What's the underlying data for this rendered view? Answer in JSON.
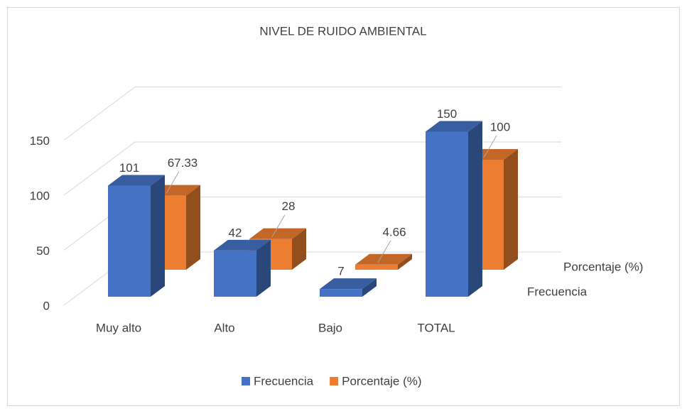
{
  "chart_data": {
    "type": "bar3d",
    "title": "NIVEL DE RUIDO AMBIENTAL",
    "categories": [
      "Muy alto",
      "Alto",
      "Bajo",
      "TOTAL"
    ],
    "series": [
      {
        "name": "Frecuencia",
        "color": "#4472c4",
        "values": [
          101,
          42,
          7,
          150
        ]
      },
      {
        "name": "Porcentaje (%)",
        "color": "#ed7d31",
        "values": [
          67.33,
          28,
          4.66,
          100
        ]
      }
    ],
    "ylim": [
      0,
      150
    ],
    "yticks": [
      0,
      50,
      100,
      150
    ],
    "grid": true,
    "legend": "bottom"
  }
}
